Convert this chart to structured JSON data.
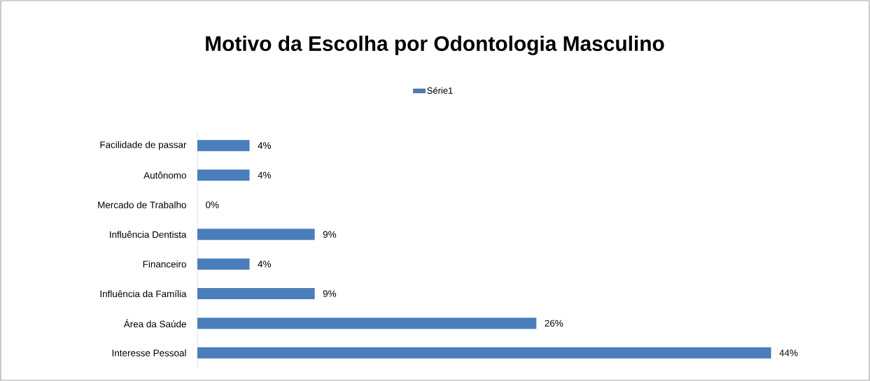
{
  "chart_data": {
    "type": "bar",
    "orientation": "horizontal",
    "title": "Motivo da Escolha por Odontologia Masculino",
    "categories": [
      "Facilidade de passar",
      "Autônomo",
      "Mercado de Trabalho",
      "Influência Dentista",
      "Financeiro",
      "Influência da Família",
      "Área da Saúde",
      "Interesse Pessoal"
    ],
    "series": [
      {
        "name": "Série1",
        "color": "#4a7ebb",
        "values": [
          4,
          4,
          0,
          9,
          4,
          9,
          26,
          44
        ],
        "value_labels": [
          "4%",
          "4%",
          "0%",
          "9%",
          "4%",
          "9%",
          "26%",
          "44%"
        ]
      }
    ],
    "legend": "top"
  }
}
